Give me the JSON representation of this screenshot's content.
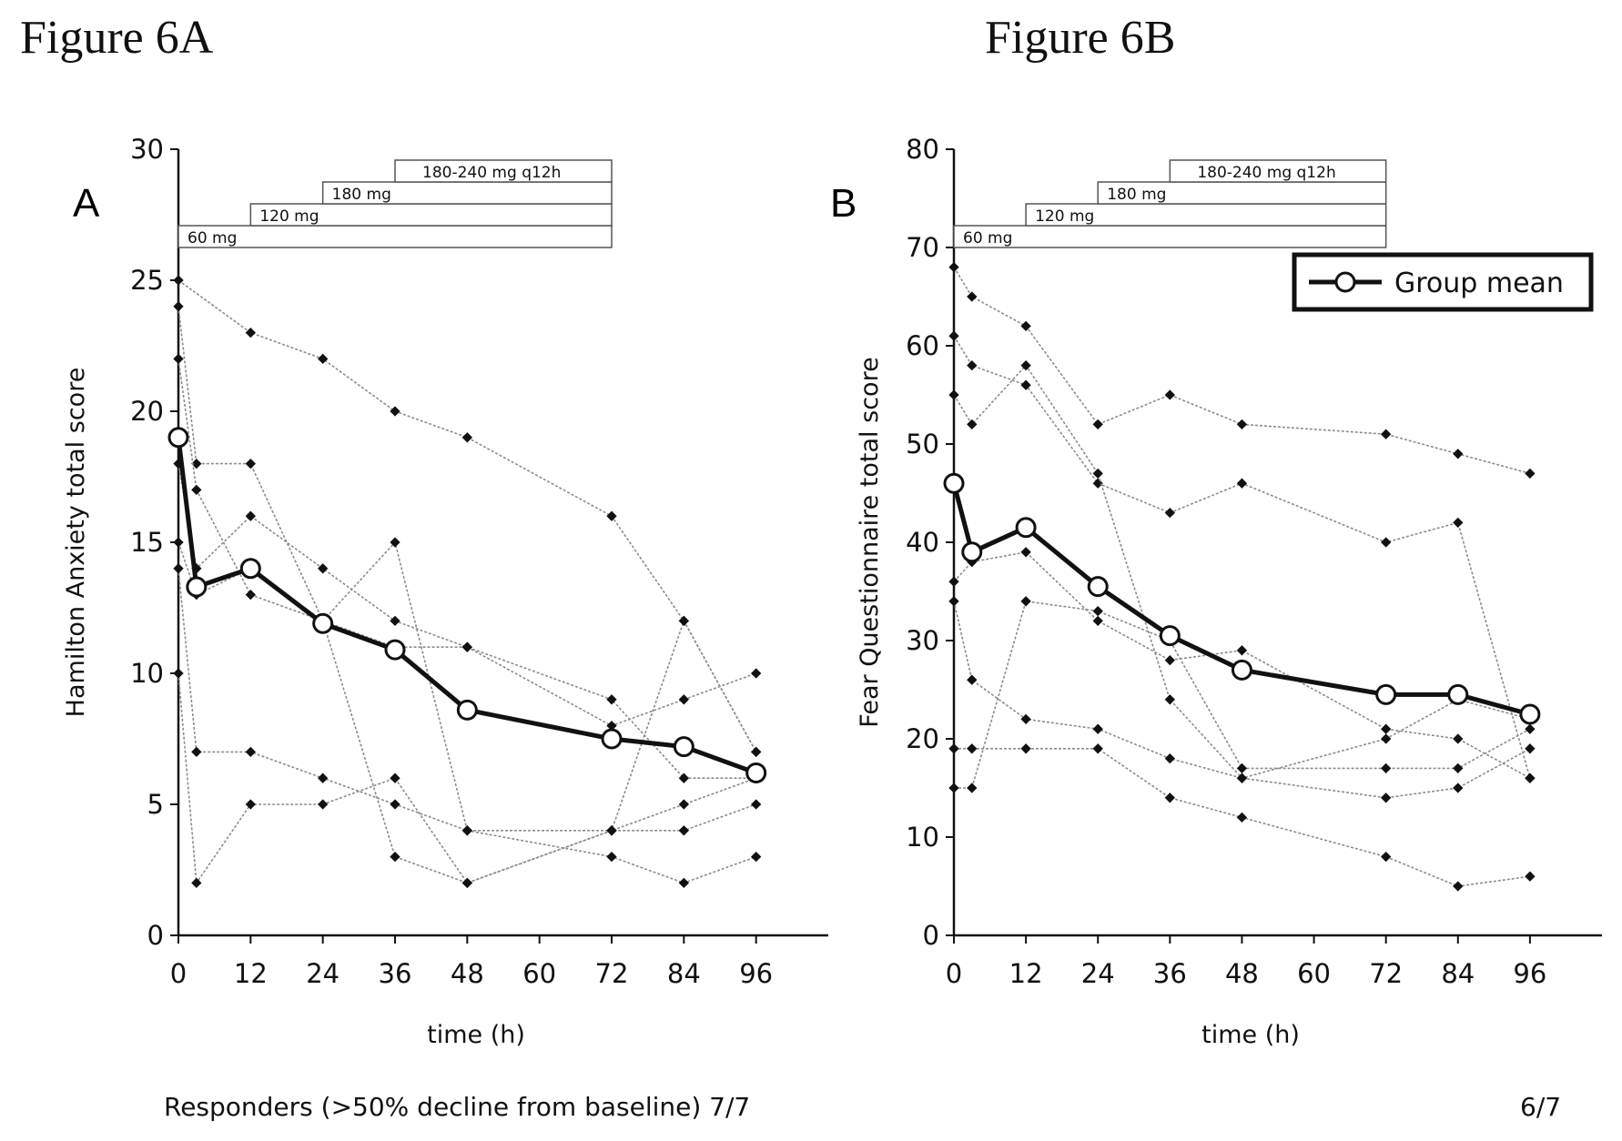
{
  "figures": {
    "a_title": "Figure 6A",
    "b_title": "Figure 6B"
  },
  "responders": {
    "a_text": "Responders (>50% decline from baseline) 7/7",
    "b_text": "6/7"
  },
  "colors": {
    "individual": "#8c8c8c",
    "mean": "#111111",
    "dose_box": "#555555"
  },
  "chart_data": [
    {
      "type": "line",
      "panel": "A",
      "xlabel": "time (h)",
      "ylabel": "Hamilton Anxiety total score",
      "xlim": [
        0,
        108
      ],
      "ylim": [
        0,
        30
      ],
      "xticks": [
        0,
        12,
        24,
        36,
        48,
        60,
        72,
        84,
        96
      ],
      "yticks": [
        0,
        5,
        10,
        15,
        20,
        25,
        30
      ],
      "dose_bars": [
        {
          "label": "60 mg",
          "start": 0,
          "end": 72
        },
        {
          "label": "120 mg",
          "start": 12,
          "end": 72
        },
        {
          "label": "180 mg",
          "start": 24,
          "end": 72
        },
        {
          "label": "180-240 mg q12h",
          "start": 36,
          "end": 72
        }
      ],
      "mean_series": {
        "x": [
          0,
          3,
          12,
          24,
          36,
          48,
          72,
          84,
          96
        ],
        "y": [
          19.0,
          13.3,
          14.0,
          11.9,
          10.9,
          8.6,
          7.5,
          7.2,
          6.2
        ]
      },
      "individual_series": [
        {
          "x": [
            0,
            12,
            24,
            36,
            48,
            72,
            84,
            96
          ],
          "y": [
            25,
            23,
            22,
            20,
            19,
            16,
            12,
            7
          ]
        },
        {
          "x": [
            0,
            3,
            12,
            24,
            36,
            48,
            72,
            84,
            96
          ],
          "y": [
            24,
            18,
            18,
            12,
            3,
            2,
            4,
            4,
            5
          ]
        },
        {
          "x": [
            0,
            3,
            12,
            24,
            36,
            48,
            72,
            84,
            96
          ],
          "y": [
            22,
            17,
            13,
            12,
            15,
            4,
            4,
            12,
            7
          ]
        },
        {
          "x": [
            0,
            3,
            12,
            24,
            36,
            48,
            72,
            84,
            96
          ],
          "y": [
            18,
            14,
            16,
            14,
            12,
            11,
            8,
            9,
            10
          ]
        },
        {
          "x": [
            0,
            3,
            12,
            24,
            36,
            48,
            72,
            84,
            96
          ],
          "y": [
            15,
            13,
            14,
            12,
            11,
            11,
            9,
            6,
            6
          ]
        },
        {
          "x": [
            0,
            3,
            12,
            24,
            36,
            48,
            72,
            84,
            96
          ],
          "y": [
            14,
            7,
            7,
            6,
            5,
            4,
            3,
            2,
            3
          ]
        },
        {
          "x": [
            0,
            3,
            12,
            24,
            36,
            48,
            72,
            84,
            96
          ],
          "y": [
            10,
            2,
            5,
            5,
            6,
            2,
            4,
            5,
            6
          ]
        }
      ]
    },
    {
      "type": "line",
      "panel": "B",
      "xlabel": "time (h)",
      "ylabel": "Fear Questionnaire total score",
      "xlim": [
        0,
        108
      ],
      "ylim": [
        0,
        80
      ],
      "xticks": [
        0,
        12,
        24,
        36,
        48,
        60,
        72,
        84,
        96
      ],
      "yticks": [
        0,
        10,
        20,
        30,
        40,
        50,
        60,
        70,
        80
      ],
      "legend": {
        "entries": [
          "Group mean"
        ],
        "placement": "top-right"
      },
      "dose_bars": [
        {
          "label": "60 mg",
          "start": 0,
          "end": 72
        },
        {
          "label": "120 mg",
          "start": 12,
          "end": 72
        },
        {
          "label": "180 mg",
          "start": 24,
          "end": 72
        },
        {
          "label": "180-240 mg q12h",
          "start": 36,
          "end": 72
        }
      ],
      "mean_series": {
        "x": [
          0,
          3,
          12,
          24,
          36,
          48,
          72,
          84,
          96
        ],
        "y": [
          46,
          39,
          41.5,
          35.5,
          30.5,
          27,
          24.5,
          24.5,
          22.5
        ]
      },
      "individual_series": [
        {
          "x": [
            0,
            3,
            12,
            24,
            36,
            48,
            72,
            84,
            96
          ],
          "y": [
            68,
            65,
            62,
            52,
            55,
            52,
            51,
            49,
            47
          ]
        },
        {
          "x": [
            0,
            3,
            12,
            24,
            36,
            48,
            72,
            84,
            96
          ],
          "y": [
            61,
            58,
            56,
            46,
            43,
            46,
            40,
            42,
            16
          ]
        },
        {
          "x": [
            0,
            3,
            12,
            24,
            36,
            48,
            72,
            84,
            96
          ],
          "y": [
            55,
            52,
            58,
            47,
            24,
            16,
            20,
            24,
            22
          ]
        },
        {
          "x": [
            0,
            3,
            12,
            24,
            36,
            48,
            72,
            84,
            96
          ],
          "y": [
            36,
            38,
            39,
            32,
            28,
            29,
            21,
            20,
            16
          ]
        },
        {
          "x": [
            0,
            3,
            12,
            24,
            36,
            48,
            72,
            84,
            96
          ],
          "y": [
            34,
            26,
            22,
            21,
            18,
            16,
            14,
            15,
            19
          ]
        },
        {
          "x": [
            0,
            3,
            12,
            24,
            36,
            48,
            72,
            84,
            96
          ],
          "y": [
            19,
            19,
            19,
            19,
            14,
            12,
            8,
            5,
            6
          ]
        },
        {
          "x": [
            0,
            3,
            12,
            24,
            36,
            48,
            72,
            84,
            96
          ],
          "y": [
            15,
            15,
            34,
            33,
            30,
            17,
            17,
            17,
            21
          ]
        }
      ]
    }
  ]
}
